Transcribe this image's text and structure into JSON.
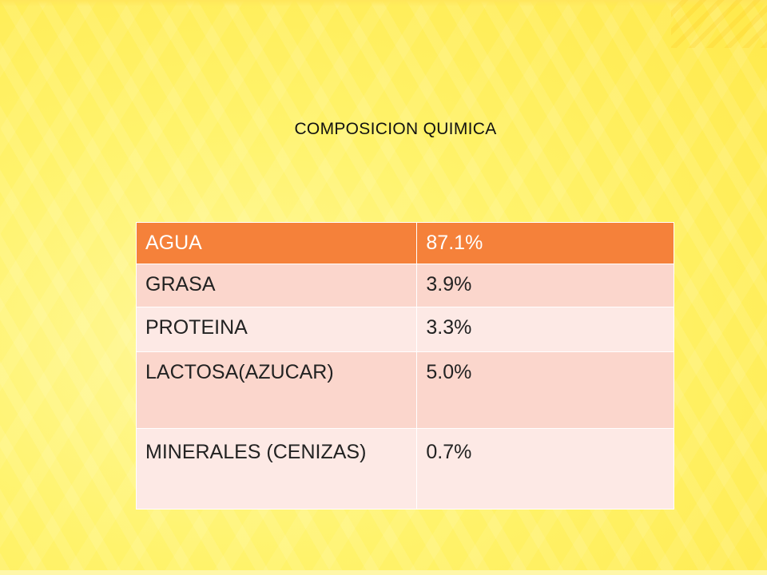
{
  "slide": {
    "title": "COMPOSICION QUIMICA"
  },
  "table": {
    "rows": [
      {
        "name": "AGUA",
        "value": "87.1%"
      },
      {
        "name": "GRASA",
        "value": "3.9%"
      },
      {
        "name": "PROTEINA",
        "value": "3.3%"
      },
      {
        "name": "LACTOSA(AZUCAR)",
        "value": "5.0%"
      },
      {
        "name": "MINERALES (CENIZAS)",
        "value": "0.7%"
      }
    ]
  },
  "colors": {
    "background": "#fff56a",
    "header_row": "#f5813a",
    "row_dark": "#fbd6cc",
    "row_light": "#fde9e5"
  }
}
